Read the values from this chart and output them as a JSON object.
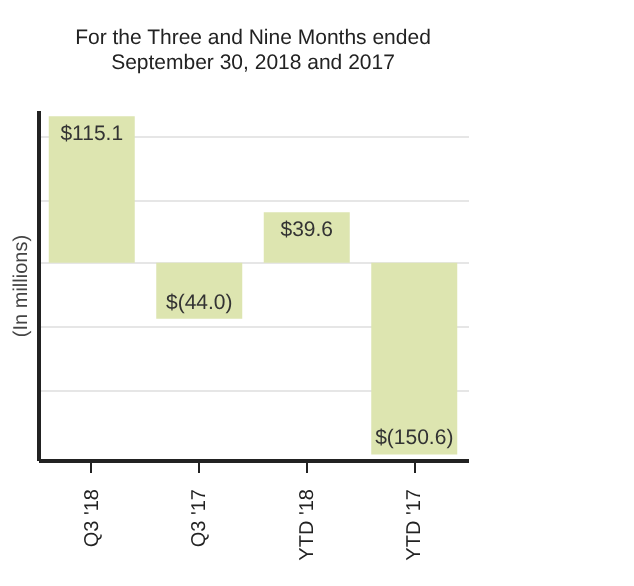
{
  "chart_data": {
    "type": "bar",
    "title": "For the Three and Nine Months ended\nSeptember 30, 2018 and 2017",
    "ylabel": "(In millions)",
    "categories": [
      "Q3 '18",
      "Q3 '17",
      "YTD '18",
      "YTD '17"
    ],
    "values": [
      115.1,
      -44.0,
      39.6,
      -150.6
    ],
    "value_labels": [
      "$115.1",
      "$(44.0)",
      "$39.6",
      "$(150.6)"
    ],
    "color": "#dde5b0",
    "ylim": [
      -155,
      120
    ],
    "yticks": [
      {
        "value": -100,
        "label": null
      },
      {
        "value": -50,
        "label": null
      },
      {
        "value": 0,
        "label": null
      },
      {
        "value": 50,
        "label": null
      },
      {
        "value": 100,
        "label": null
      }
    ],
    "grid": "y",
    "tick_labels": "x"
  }
}
